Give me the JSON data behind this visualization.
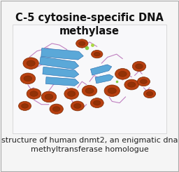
{
  "title": "C-5 cytosine-specific DNA\nmethylase",
  "caption": "structure of human dnmt2, an enigmatic dna\nmethyltransferase homologue",
  "bg_color": "#f5f5f5",
  "title_fontsize": 10.5,
  "caption_fontsize": 8.0,
  "title_fontweight": "bold",
  "title_color": "#111111",
  "caption_color": "#222222",
  "image_box_bg": "#f0f0f0",
  "border_color": "#aaaaaa"
}
